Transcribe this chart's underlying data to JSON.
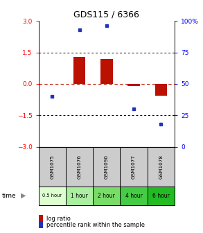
{
  "title": "GDS115 / 6366",
  "samples": [
    "GSM1075",
    "GSM1076",
    "GSM1090",
    "GSM1077",
    "GSM1078"
  ],
  "time_labels": [
    "0.5 hour",
    "1 hour",
    "2 hour",
    "4 hour",
    "6 hour"
  ],
  "time_colors": [
    "#e8ffe0",
    "#99ee88",
    "#66dd55",
    "#33cc33",
    "#00bb00"
  ],
  "log_ratios": [
    0.0,
    1.3,
    1.2,
    -0.1,
    -0.55
  ],
  "percentiles": [
    40,
    93,
    96,
    30,
    18
  ],
  "ylim_left": [
    -3,
    3
  ],
  "ylim_right": [
    0,
    100
  ],
  "bar_color": "#bb1100",
  "dot_color": "#2233bb",
  "left_yticks": [
    -3,
    -1.5,
    0,
    1.5,
    3
  ],
  "right_yticks": [
    0,
    25,
    50,
    75,
    100
  ],
  "hline_dotted": [
    1.5,
    -1.5
  ],
  "bg_color": "#ffffff",
  "sample_bg": "#cccccc",
  "legend_red_label": "log ratio",
  "legend_blue_label": "percentile rank within the sample"
}
